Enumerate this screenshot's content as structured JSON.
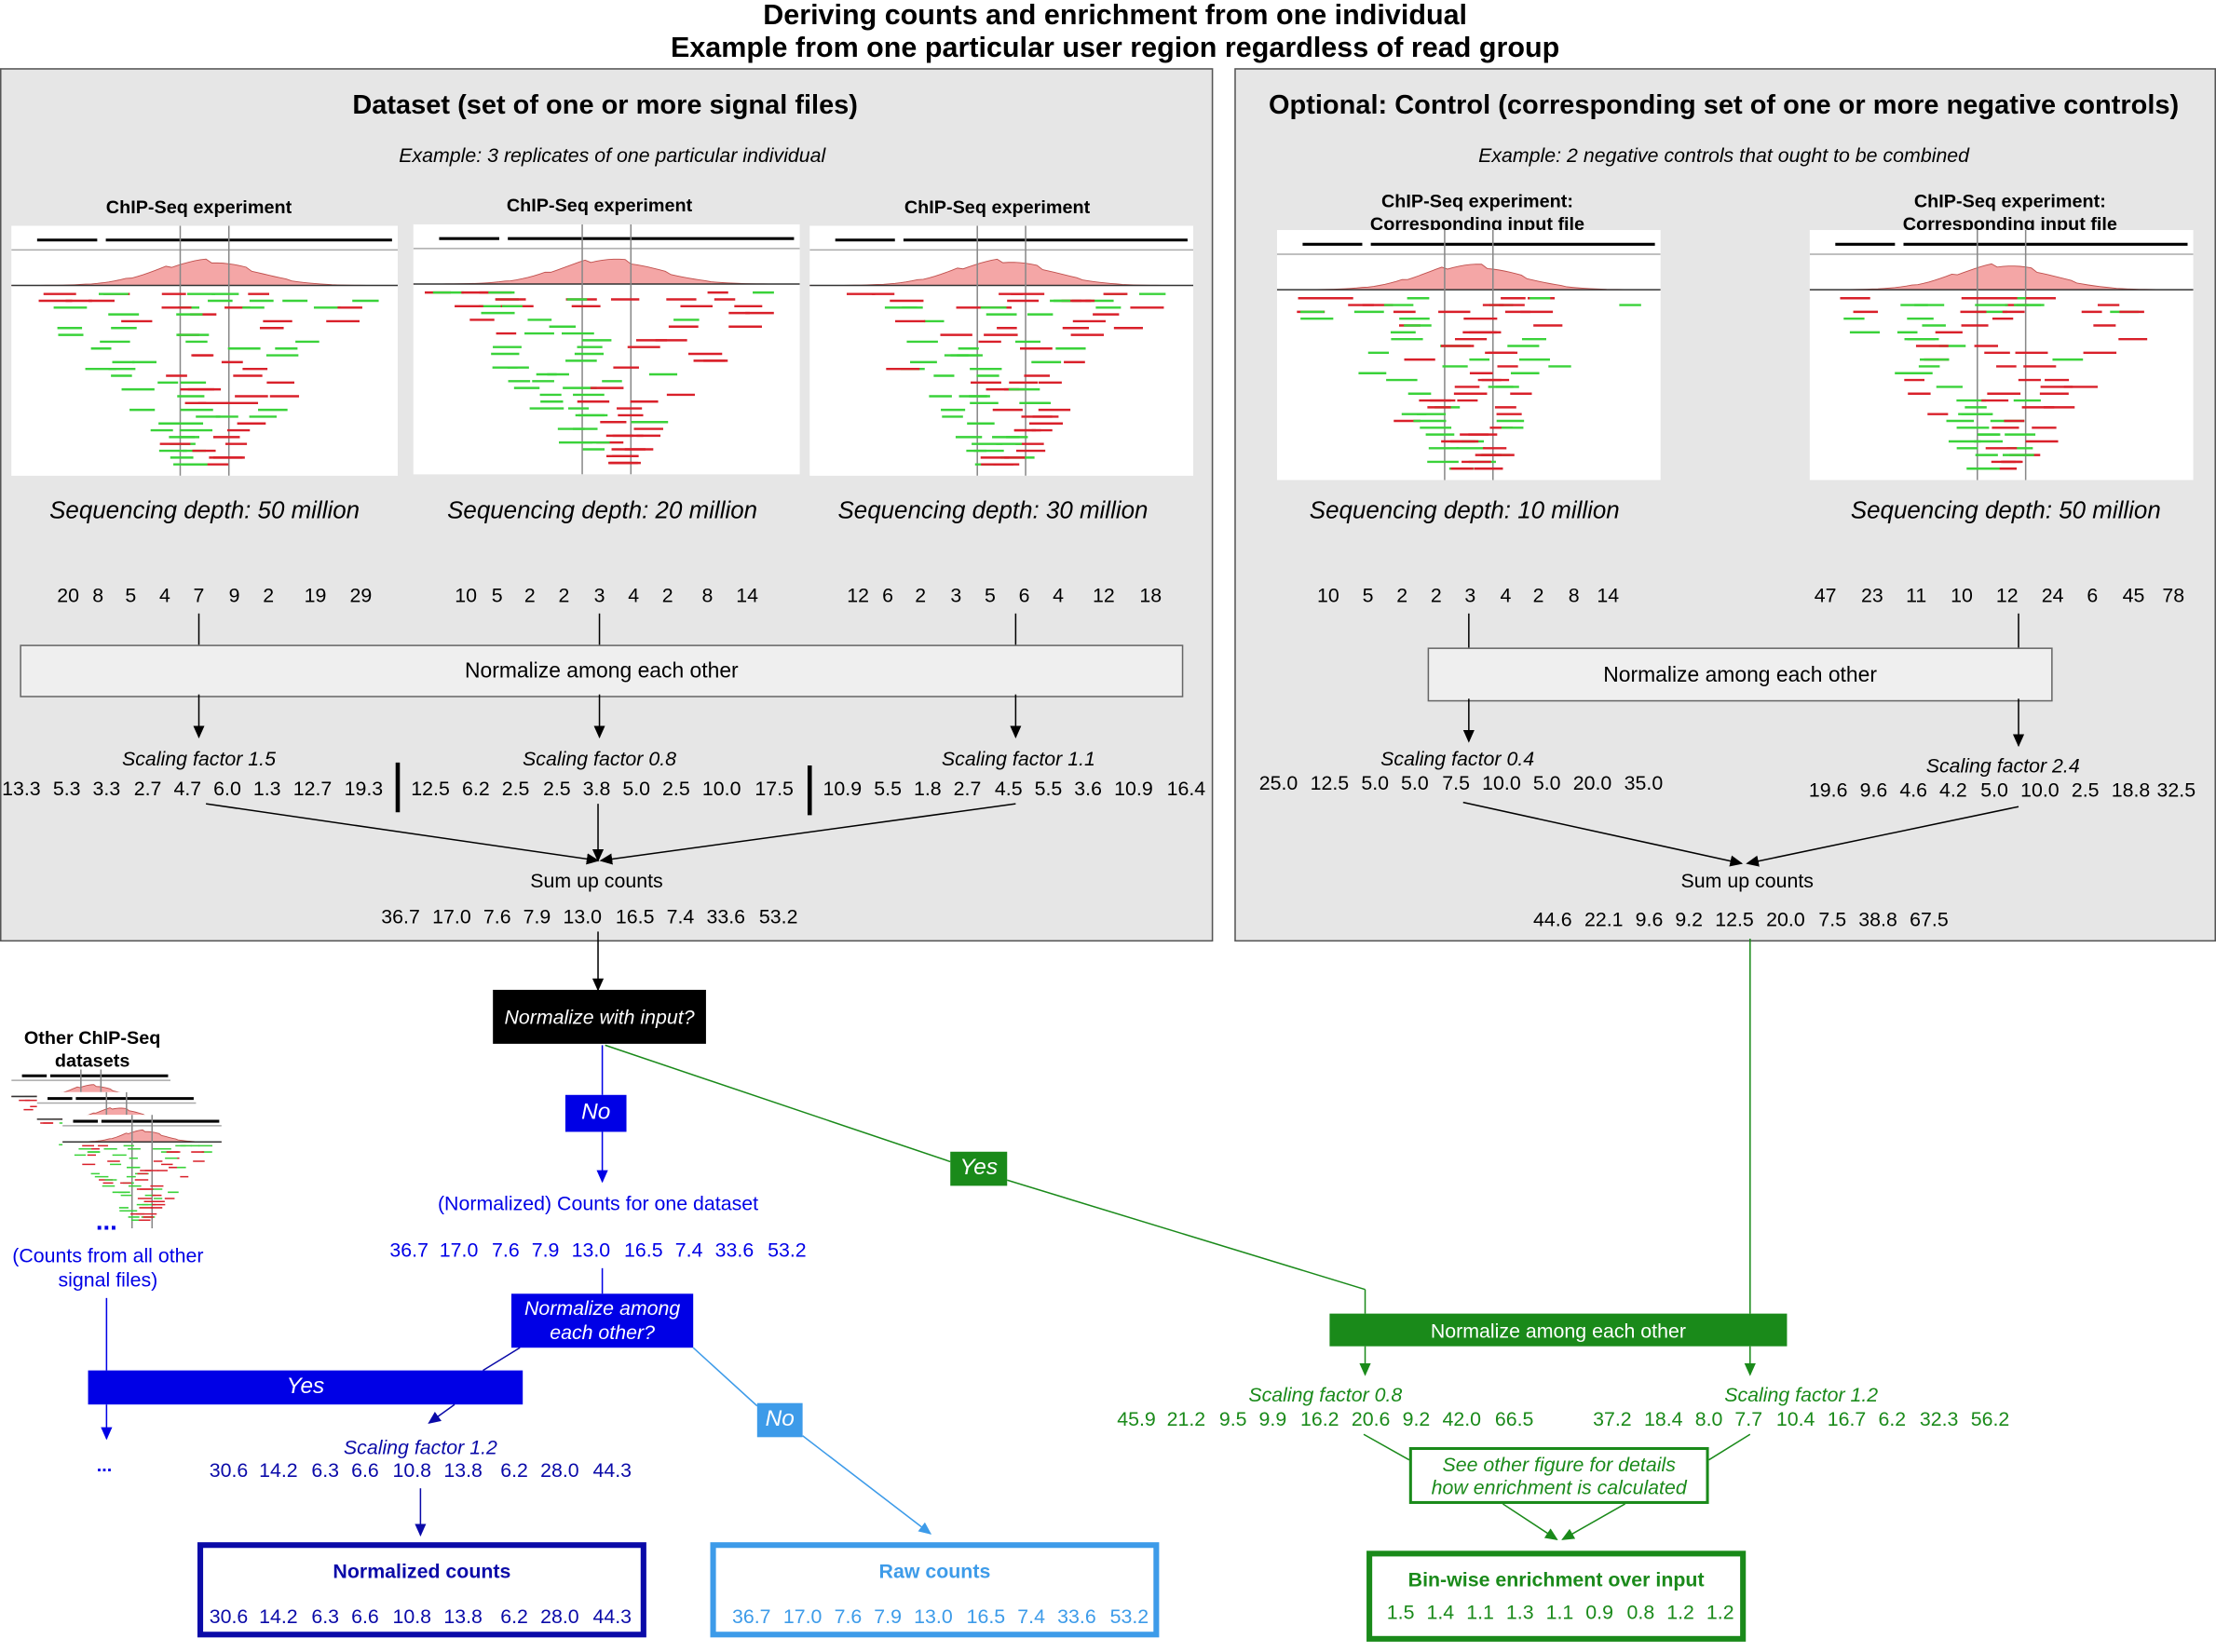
{
  "title_line1": "Deriving counts and enrichment from one individual",
  "title_line2": "Example from one particular user region regardless of read group",
  "dataset": {
    "heading": "Dataset (set of one or more signal files)",
    "example": "Example: 3 replicates of one particular individual",
    "tracks": [
      {
        "label": "ChIP-Seq experiment",
        "depth": "Sequencing depth: 50 million",
        "counts": [
          "20",
          "8",
          "5",
          "4",
          "7",
          "9",
          "2",
          "19",
          "29"
        ],
        "scaling": "Scaling factor 1.5",
        "scaled": [
          "13.3",
          "5.3",
          "3.3",
          "2.7",
          "4.7",
          "6.0",
          "1.3",
          "12.7",
          "19.3"
        ]
      },
      {
        "label": "ChIP-Seq experiment",
        "depth": "Sequencing depth: 20 million",
        "counts": [
          "10",
          "5",
          "2",
          "2",
          "3",
          "4",
          "2",
          "8",
          "14"
        ],
        "scaling": "Scaling factor 0.8",
        "scaled": [
          "12.5",
          "6.2",
          "2.5",
          "2.5",
          "3.8",
          "5.0",
          "2.5",
          "10.0",
          "17.5"
        ]
      },
      {
        "label": "ChIP-Seq experiment",
        "depth": "Sequencing depth: 30 million",
        "counts": [
          "12",
          "6",
          "2",
          "3",
          "5",
          "6",
          "4",
          "12",
          "18"
        ],
        "scaling": "Scaling factor 1.1",
        "scaled": [
          "10.9",
          "5.5",
          "1.8",
          "2.7",
          "4.5",
          "5.5",
          "3.6",
          "10.9",
          "16.4"
        ]
      }
    ],
    "normalize_label": "Normalize among each other",
    "sum_label": "Sum up counts",
    "sum_values": [
      "36.7",
      "17.0",
      "7.6",
      "7.9",
      "13.0",
      "16.5",
      "7.4",
      "33.6",
      "53.2"
    ]
  },
  "control": {
    "heading": "Optional: Control (corresponding set of one or more negative controls)",
    "example": "Example: 2 negative controls that ought to be combined",
    "tracks": [
      {
        "label1": "ChIP-Seq experiment:",
        "label2": "Corresponding input file",
        "depth": "Sequencing depth: 10 million",
        "counts": [
          "10",
          "5",
          "2",
          "2",
          "3",
          "4",
          "2",
          "8",
          "14"
        ],
        "scaling": "Scaling factor 0.4",
        "scaled": [
          "25.0",
          "12.5",
          "5.0",
          "5.0",
          "7.5",
          "10.0",
          "5.0",
          "20.0",
          "35.0"
        ]
      },
      {
        "label1": "ChIP-Seq experiment:",
        "label2": "Corresponding input file",
        "depth": "Sequencing depth: 50 million",
        "counts": [
          "47",
          "23",
          "11",
          "10",
          "12",
          "24",
          "6",
          "45",
          "78"
        ],
        "scaling": "Scaling factor 2.4",
        "scaled": [
          "19.6",
          "9.6",
          "4.6",
          "4.2",
          "5.0",
          "10.0",
          "2.5",
          "18.8",
          "32.5"
        ]
      }
    ],
    "normalize_label": "Normalize among each other",
    "sum_label": "Sum up counts",
    "sum_values": [
      "44.6",
      "22.1",
      "9.6",
      "9.2",
      "12.5",
      "20.0",
      "7.5",
      "38.8",
      "67.5"
    ]
  },
  "flow": {
    "normalize_input_q": "Normalize with input?",
    "no_label": "No",
    "yes_label": "Yes",
    "counts_one_dataset": "(Normalized) Counts for one dataset",
    "counts_one_values": [
      "36.7",
      "17.0",
      "7.6",
      "7.9",
      "13.0",
      "16.5",
      "7.4",
      "33.6",
      "53.2"
    ],
    "other_title1": "Other ChIP-Seq",
    "other_title2": "datasets",
    "other_dots": "...",
    "other_counts1": "(Counts from all other",
    "other_counts2": "signal files)",
    "normalize_among_q1": "Normalize among",
    "normalize_among_q2": "each other?",
    "yes2_label": "Yes",
    "no2_label": "No",
    "ellipsis_small": "...",
    "scaling12": "Scaling factor 1.2",
    "scaled12_values": [
      "30.6",
      "14.2",
      "6.3",
      "6.6",
      "10.8",
      "13.8",
      "6.2",
      "28.0",
      "44.3"
    ],
    "normalized_counts_title": "Normalized counts",
    "normalized_counts_values": [
      "30.6",
      "14.2",
      "6.3",
      "6.6",
      "10.8",
      "13.8",
      "6.2",
      "28.0",
      "44.3"
    ],
    "raw_counts_title": "Raw counts",
    "raw_counts_values": [
      "36.7",
      "17.0",
      "7.6",
      "7.9",
      "13.0",
      "16.5",
      "7.4",
      "33.6",
      "53.2"
    ],
    "green_normalize": "Normalize among each other",
    "green_scale_left": "Scaling factor 0.8",
    "green_left_values": [
      "45.9",
      "21.2",
      "9.5",
      "9.9",
      "16.2",
      "20.6",
      "9.2",
      "42.0",
      "66.5"
    ],
    "green_scale_right": "Scaling factor 1.2",
    "green_right_values": [
      "37.2",
      "18.4",
      "8.0",
      "7.7",
      "10.4",
      "16.7",
      "6.2",
      "32.3",
      "56.2"
    ],
    "see_other1": "See other figure for details",
    "see_other2": "how enrichment is calculated",
    "enrichment_title": "Bin-wise enrichment over input",
    "enrichment_values": [
      "1.5",
      "1.4",
      "1.1",
      "1.3",
      "1.1",
      "0.9",
      "0.8",
      "1.2",
      "1.2"
    ]
  },
  "colors": {
    "blue": "#0000e6",
    "darkblue": "#0a0aa8",
    "lightblue": "#3d9be9",
    "green": "#1a8a1a",
    "read_red": "#d9202a",
    "read_green": "#3ad23a",
    "peak": "#f4a6a6"
  }
}
